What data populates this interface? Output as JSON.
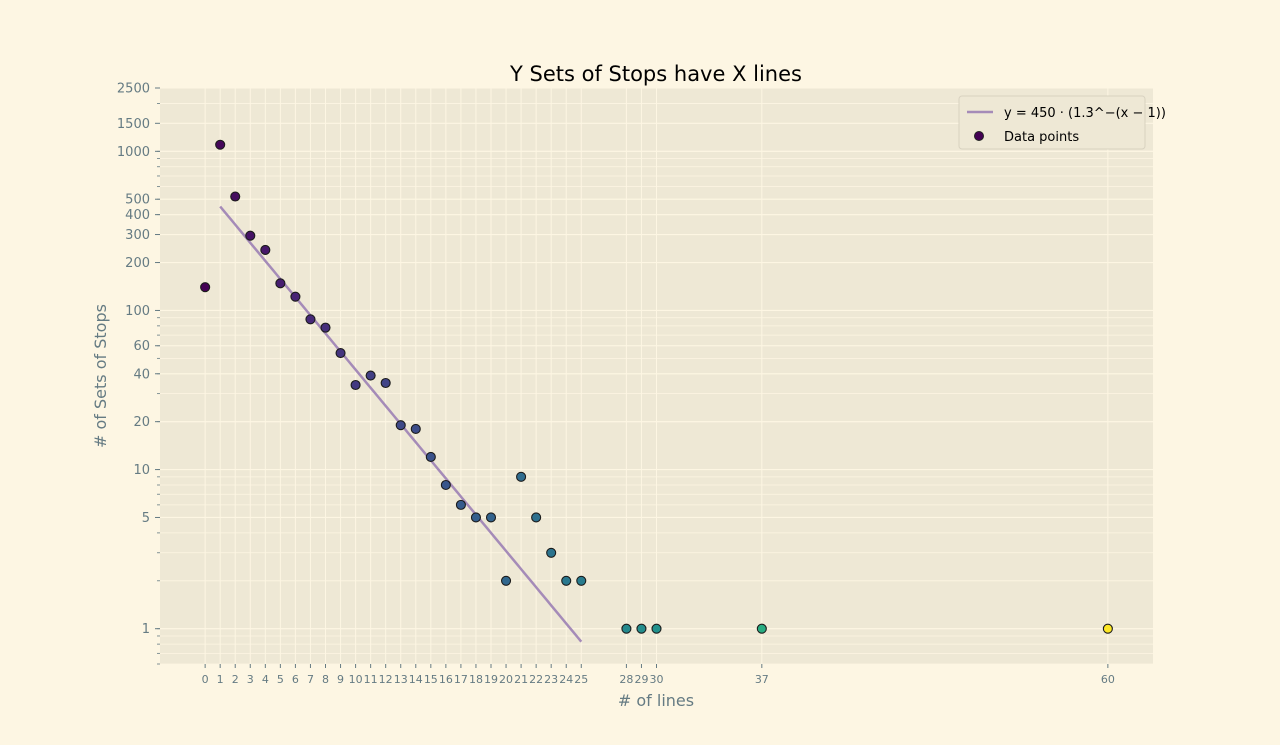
{
  "chart_data": {
    "type": "scatter",
    "title": "Y Sets of Stops have X lines",
    "xlabel": "# of lines",
    "ylabel": "# of Sets of Stops",
    "yscale": "log",
    "xlim": [
      -3,
      63
    ],
    "ylim": [
      0.6,
      2500
    ],
    "grid": true,
    "legend": "top-right",
    "x_ticks": [
      0,
      1,
      2,
      3,
      4,
      5,
      6,
      7,
      8,
      9,
      10,
      11,
      12,
      13,
      14,
      15,
      16,
      17,
      18,
      19,
      20,
      21,
      22,
      23,
      24,
      25,
      28,
      29,
      30,
      37,
      60
    ],
    "y_ticks": [
      1,
      5,
      10,
      20,
      40,
      60,
      100,
      200,
      300,
      400,
      500,
      1000,
      1500,
      2500
    ],
    "series": [
      {
        "name": "Data points",
        "kind": "scatter",
        "colormap": "viridis",
        "points": [
          [
            0,
            140
          ],
          [
            1,
            1100
          ],
          [
            2,
            520
          ],
          [
            3,
            295
          ],
          [
            4,
            240
          ],
          [
            5,
            148
          ],
          [
            6,
            122
          ],
          [
            7,
            88
          ],
          [
            8,
            78
          ],
          [
            9,
            54
          ],
          [
            10,
            34
          ],
          [
            11,
            39
          ],
          [
            12,
            35
          ],
          [
            13,
            19
          ],
          [
            14,
            18
          ],
          [
            15,
            12
          ],
          [
            16,
            8
          ],
          [
            17,
            6
          ],
          [
            18,
            5
          ],
          [
            19,
            5
          ],
          [
            20,
            2
          ],
          [
            21,
            9
          ],
          [
            22,
            5
          ],
          [
            23,
            3
          ],
          [
            24,
            2
          ],
          [
            25,
            2
          ],
          [
            28,
            1
          ],
          [
            29,
            1
          ],
          [
            30,
            1
          ],
          [
            37,
            1
          ],
          [
            60,
            1
          ]
        ]
      },
      {
        "kind": "fit-line",
        "formula": "y = 450 · (1.3^−(x − 1))",
        "a": 450,
        "b": 1.3,
        "x_range": [
          1,
          25
        ],
        "color": "#a58bb8"
      }
    ]
  },
  "colors": {
    "figure_bg": "#fdf6e3",
    "axes_bg": "#eee8d5",
    "grid": "#fdf6e3",
    "tick_text": "#657b83",
    "fit_line": "#a58bb8"
  }
}
